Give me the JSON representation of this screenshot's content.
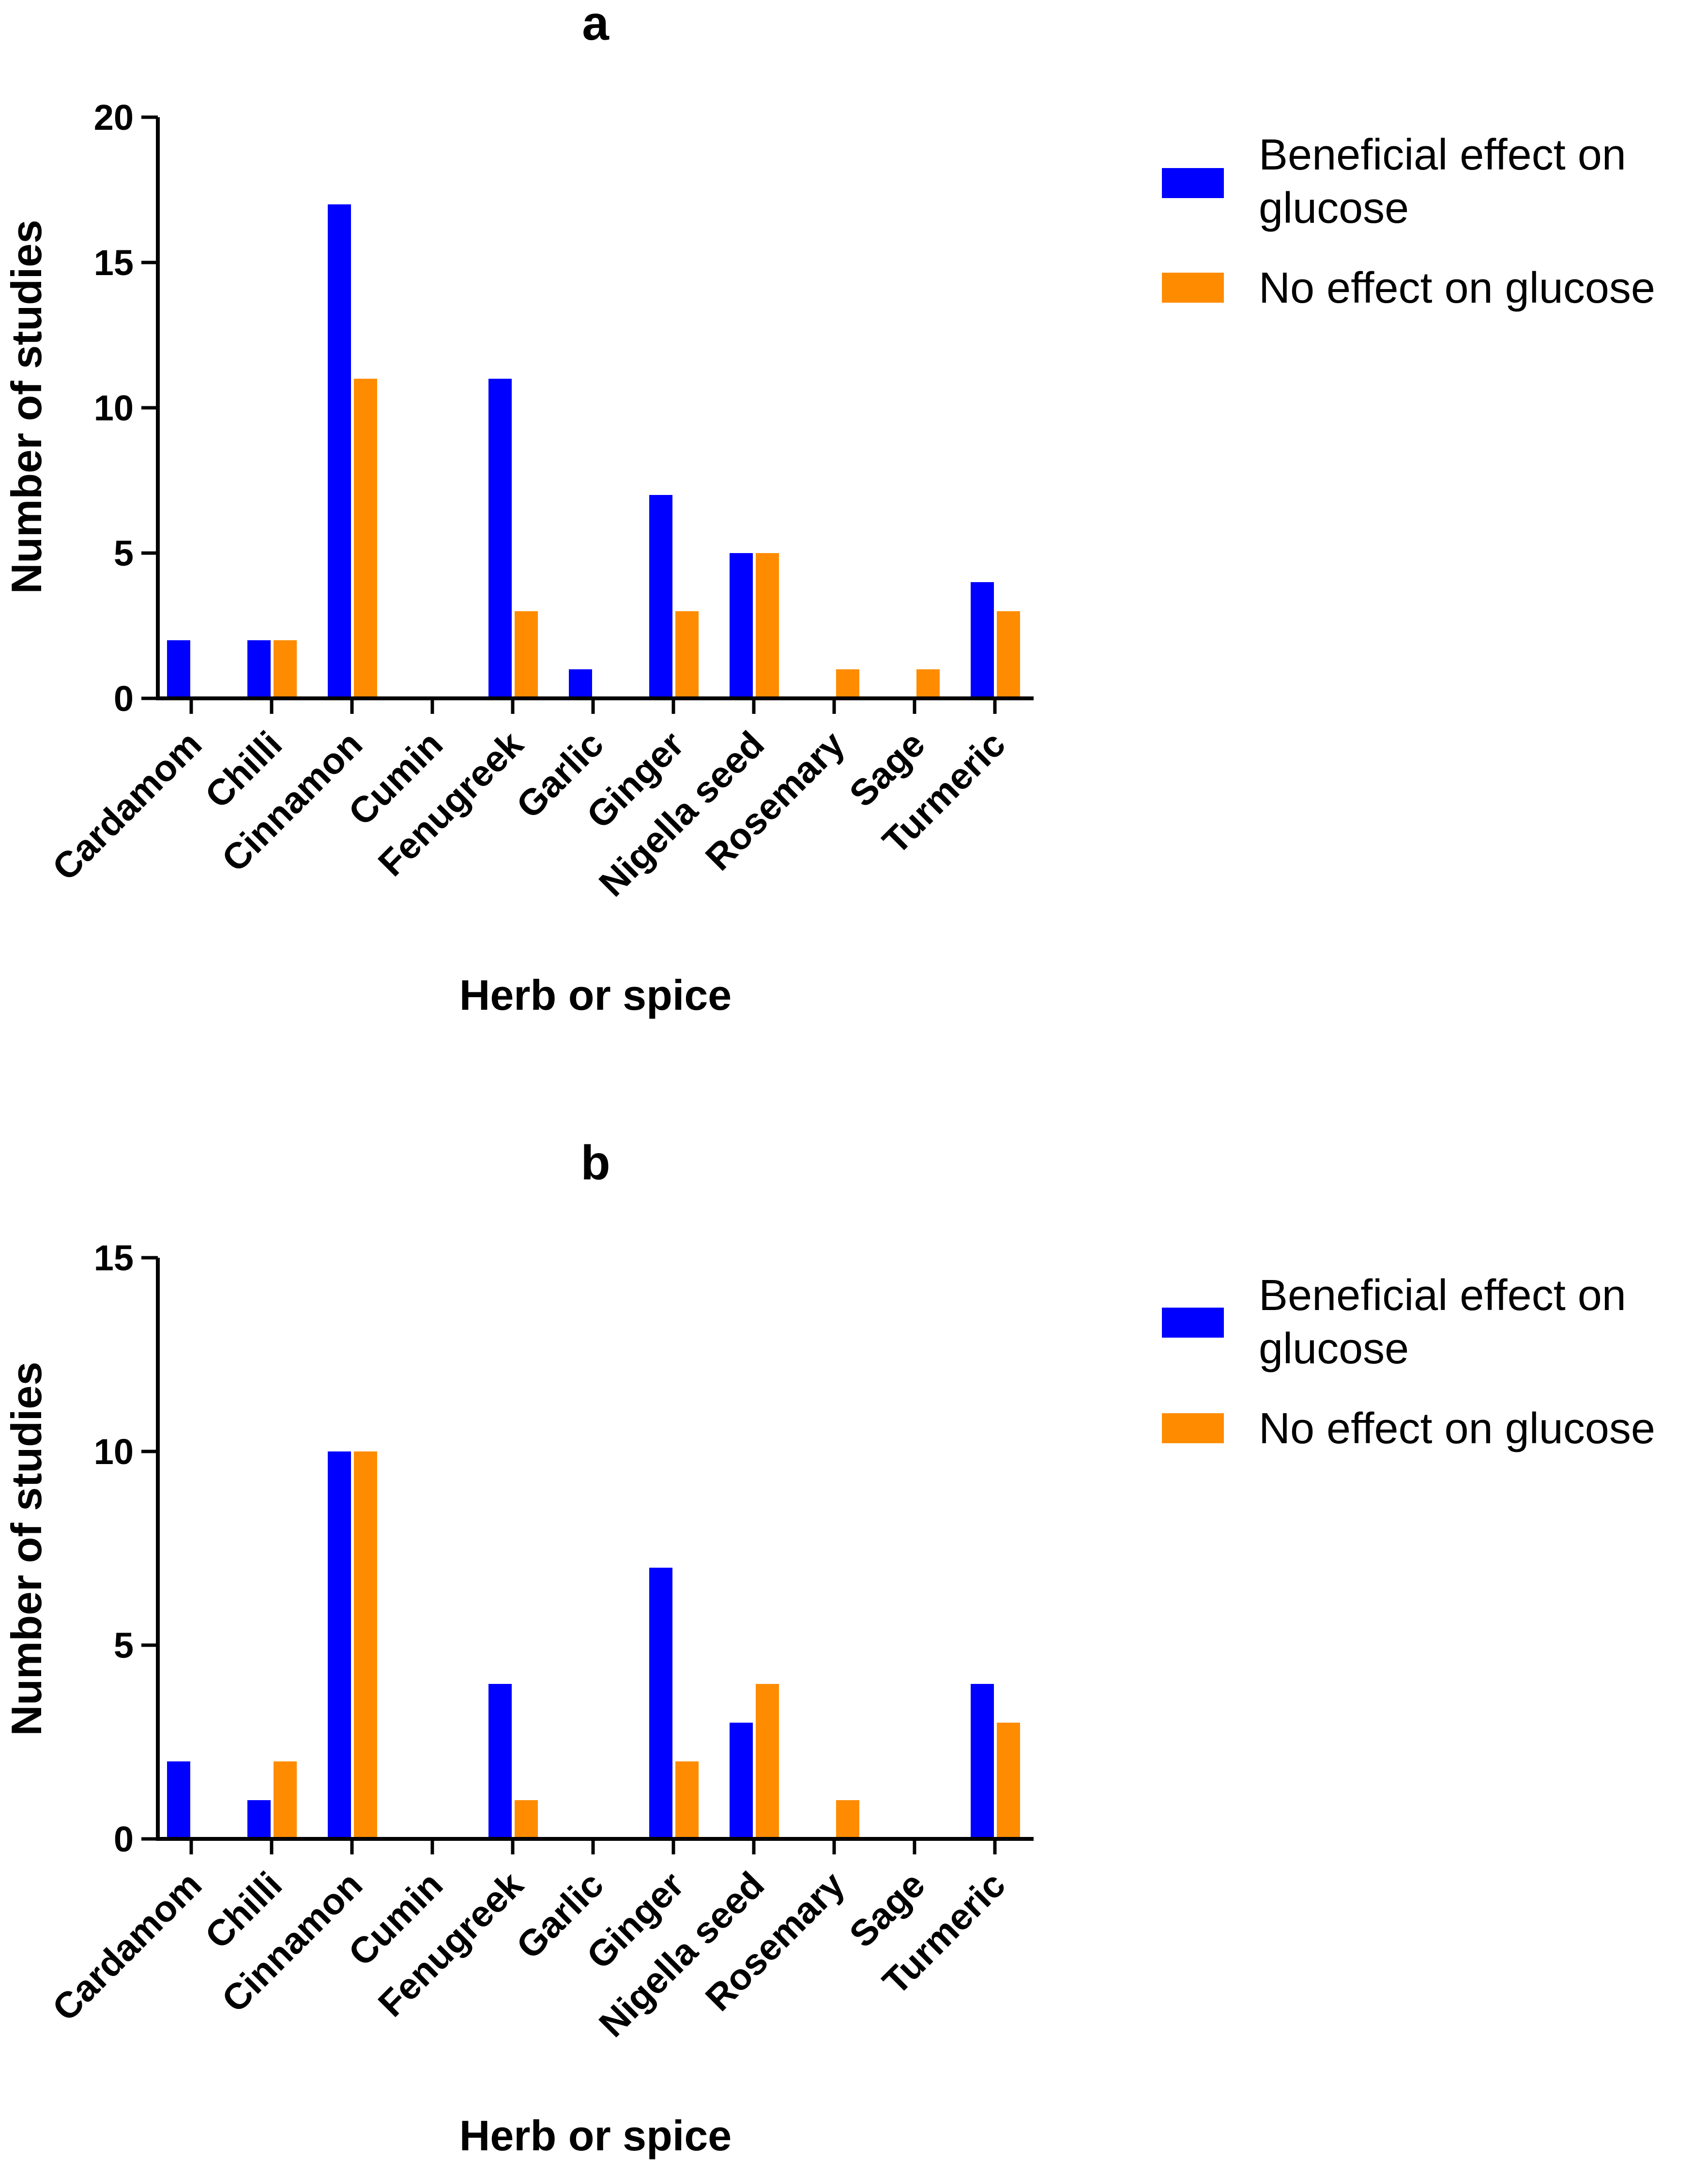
{
  "chart_data": [
    {
      "type": "bar",
      "title": "a",
      "xlabel": "Herb or spice",
      "ylabel": "Number of studies",
      "ylim": [
        0,
        20
      ],
      "yticks": [
        0,
        5,
        10,
        15,
        20
      ],
      "categories": [
        "Cardamom",
        "Chilli",
        "Cinnamon",
        "Cumin",
        "Fenugreek",
        "Garlic",
        "Ginger",
        "Nigella seed",
        "Rosemary",
        "Sage",
        "Turmeric"
      ],
      "series": [
        {
          "name": "Beneficial effect on glucose",
          "legend_lines": [
            "Beneficial effect on",
            "glucose"
          ],
          "color": "#0000ff",
          "values": [
            2,
            2,
            17,
            0,
            11,
            1,
            7,
            5,
            0,
            0,
            4
          ]
        },
        {
          "name": "No effect on glucose",
          "legend_lines": [
            "No effect on glucose"
          ],
          "color": "#ff8c00",
          "values": [
            0,
            2,
            11,
            0,
            3,
            0,
            3,
            5,
            1,
            1,
            3
          ]
        }
      ],
      "legend": "top-right",
      "grid": false
    },
    {
      "type": "bar",
      "title": "b",
      "xlabel": "Herb or spice",
      "ylabel": "Number of studies",
      "ylim": [
        0,
        15
      ],
      "yticks": [
        0,
        5,
        10,
        15
      ],
      "categories": [
        "Cardamom",
        "Chilli",
        "Cinnamon",
        "Cumin",
        "Fenugreek",
        "Garlic",
        "Ginger",
        "Nigella seed",
        "Rosemary",
        "Sage",
        "Turmeric"
      ],
      "series": [
        {
          "name": "Beneficial effect on glucose",
          "legend_lines": [
            "Beneficial effect on",
            "glucose"
          ],
          "color": "#0000ff",
          "values": [
            2,
            1,
            10,
            0,
            4,
            0,
            7,
            3,
            0,
            0,
            4
          ]
        },
        {
          "name": "No effect on glucose",
          "legend_lines": [
            "No effect on glucose"
          ],
          "color": "#ff8c00",
          "values": [
            0,
            2,
            10,
            0,
            1,
            0,
            2,
            4,
            1,
            0,
            3
          ]
        }
      ],
      "legend": "top-right",
      "grid": false
    }
  ]
}
